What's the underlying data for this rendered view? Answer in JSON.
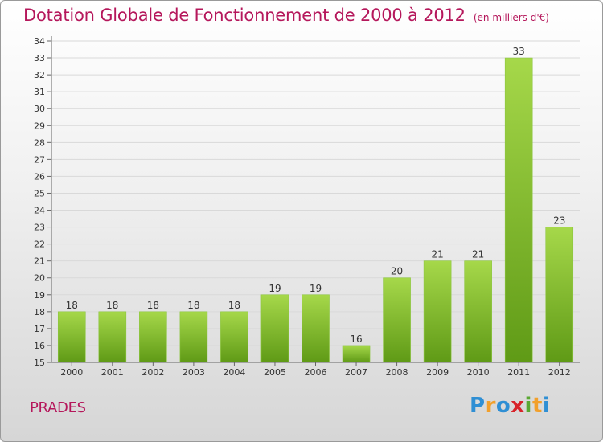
{
  "title": "Dotation Globale de Fonctionnement de 2000 à 2012",
  "unit": "(en milliers d'€)",
  "commune": "PRADES",
  "logo": {
    "letters": [
      "P",
      "r",
      "o",
      "x",
      "i",
      "t",
      "i"
    ],
    "colors": [
      "#2f8fd4",
      "#f2a02b",
      "#2f8fd4",
      "#d8232a",
      "#5aa832",
      "#f2a02b",
      "#2f8fd4"
    ]
  },
  "colors": {
    "title": "#b5175b",
    "bar_light": "#a6d84a",
    "bar_dark": "#5f9a16",
    "grid": "#d9d9d9",
    "axis": "#666666"
  },
  "chart_data": {
    "type": "bar",
    "title": "Dotation Globale de Fonctionnement de 2000 à 2012",
    "subtitle": "(en milliers d'€)",
    "xlabel": "",
    "ylabel": "",
    "categories": [
      "2000",
      "2001",
      "2002",
      "2003",
      "2004",
      "2005",
      "2006",
      "2007",
      "2008",
      "2009",
      "2010",
      "2011",
      "2012"
    ],
    "values": [
      18,
      18,
      18,
      18,
      18,
      19,
      19,
      16,
      20,
      21,
      21,
      33,
      23
    ],
    "ylim": [
      15,
      34
    ],
    "yticks": [
      15,
      16,
      17,
      18,
      19,
      20,
      21,
      22,
      23,
      24,
      25,
      26,
      27,
      28,
      29,
      30,
      31,
      32,
      33,
      34
    ],
    "grid": true,
    "legend": "none"
  }
}
